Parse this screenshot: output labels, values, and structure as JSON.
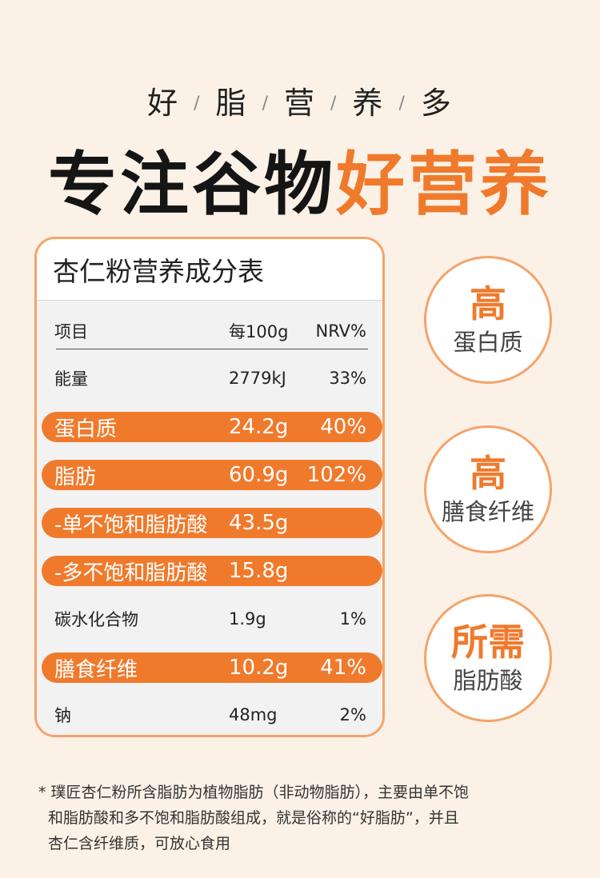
{
  "tagline": [
    "好",
    "脂",
    "营",
    "养",
    "多"
  ],
  "tagline_separator": "/",
  "headline": {
    "black": "专注谷物",
    "orange": "好营养"
  },
  "table": {
    "title": "杏仁粉营养成分表",
    "header": {
      "item": "项目",
      "per100g": "每100g",
      "nrv": "NRV%"
    },
    "rows": [
      {
        "item": "能量",
        "per100g": "2779kJ",
        "nrv": "33%",
        "highlight": false
      },
      {
        "item": "蛋白质",
        "per100g": "24.2g",
        "nrv": "40%",
        "highlight": true
      },
      {
        "item": "脂肪",
        "per100g": "60.9g",
        "nrv": "102%",
        "highlight": true
      },
      {
        "item": "-单不饱和脂肪酸",
        "per100g": "43.5g",
        "nrv": "",
        "highlight": true
      },
      {
        "item": "-多不饱和脂肪酸",
        "per100g": "15.8g",
        "nrv": "",
        "highlight": true
      },
      {
        "item": "碳水化合物",
        "per100g": "1.9g",
        "nrv": "1%",
        "highlight": false
      },
      {
        "item": "膳食纤维",
        "per100g": "10.2g",
        "nrv": "41%",
        "highlight": true
      },
      {
        "item": "钠",
        "per100g": "48mg",
        "nrv": "2%",
        "highlight": false
      }
    ]
  },
  "badges": [
    {
      "big": "高",
      "small": "蛋白质"
    },
    {
      "big": "高",
      "small": "膳食纤维"
    },
    {
      "big": "所需",
      "small": "脂肪酸"
    }
  ],
  "footnote": {
    "line1": "* 璞匠杏仁粉所含脂肪为植物脂肪（非动物脂肪），主要由单不饱",
    "line2": "和脂肪酸和多不饱和脂肪酸组成，就是俗称的“好脂肪”，并且",
    "line3": "杏仁含纤维质，可放心食用"
  },
  "colors": {
    "accent": "#f07a2c",
    "background": "#fbf1e6",
    "border": "#f5a36a"
  }
}
